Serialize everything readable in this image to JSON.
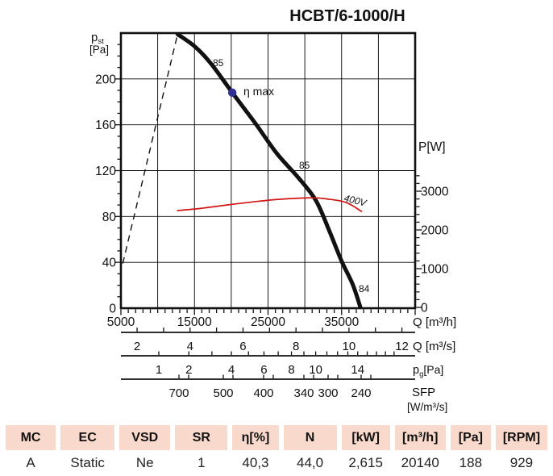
{
  "title": "HCBT/6-1000/H",
  "colors": {
    "red": "#d21414",
    "navy": "#2f3193",
    "peach": "#f8d9cb",
    "curve": "#111111"
  },
  "chart": {
    "y_left": {
      "name": "p",
      "sub": "st",
      "unit": "[Pa]",
      "tick_labels": [
        "0",
        "40",
        "80",
        "120",
        "160",
        "200"
      ],
      "tick_values": [
        0,
        40,
        80,
        120,
        160,
        200
      ]
    },
    "y_right": {
      "label": "P[W]",
      "tick_labels": [
        "0",
        "1000",
        "2000",
        "3000"
      ],
      "tick_values": [
        0,
        1000,
        2000,
        3000
      ]
    },
    "x_flow_h": {
      "unit": "Q [m³/h]",
      "tick_labels": [
        "5000",
        "15000",
        "25000",
        "35000"
      ],
      "tick_values": [
        5000,
        15000,
        25000,
        35000
      ]
    },
    "x_flow_s": {
      "unit": "Q [m³/s]",
      "tick_labels": [
        "2",
        "4",
        "6",
        "8",
        "10",
        "12"
      ],
      "tick_values": [
        2,
        4,
        6,
        8,
        10,
        12
      ]
    },
    "x_dyn_p": {
      "name": "p",
      "sub": "g",
      "unit": "[Pa]",
      "tick_labels": [
        "1",
        "2",
        "4",
        "6",
        "8",
        "10",
        "14"
      ],
      "tick_values": [
        1,
        2,
        4,
        6,
        8,
        10,
        14
      ]
    },
    "x_sfp": {
      "label": "SFP",
      "unit": "[W/m³/s]",
      "tick_labels": [
        "700",
        "500",
        "400",
        "340",
        "300",
        "240"
      ]
    },
    "curve_labels": [
      "85",
      "85",
      "84"
    ],
    "eta_max_label": "η max",
    "power_curve_label": "400V"
  },
  "chart_data": {
    "type": "line",
    "title": "HCBT/6-1000/H",
    "xlabel": "Q [m³/h]",
    "ylabel_left": "p_st [Pa]",
    "ylabel_right": "P [W]",
    "x_range": [
      5000,
      45000
    ],
    "y_left_range": [
      0,
      240
    ],
    "y_right_range": [
      0,
      3500
    ],
    "grid": true,
    "series": [
      {
        "name": "fan_curve_pst",
        "axis": "left",
        "style": "solid",
        "color": "#111111",
        "points": [
          [
            12700,
            239
          ],
          [
            15100,
            228
          ],
          [
            17300,
            213
          ],
          [
            20140,
            188
          ],
          [
            23300,
            161
          ],
          [
            26200,
            135
          ],
          [
            29100,
            114
          ],
          [
            31500,
            94
          ],
          [
            33300,
            68
          ],
          [
            35000,
            41
          ],
          [
            36500,
            21
          ],
          [
            37550,
            1
          ]
        ]
      },
      {
        "name": "power_400V",
        "axis": "right",
        "style": "solid",
        "color": "#d21414",
        "points": [
          [
            12700,
            2500
          ],
          [
            16000,
            2560
          ],
          [
            19500,
            2645
          ],
          [
            23000,
            2725
          ],
          [
            26400,
            2790
          ],
          [
            30800,
            2830
          ],
          [
            33000,
            2800
          ],
          [
            35600,
            2710
          ],
          [
            37700,
            2480
          ]
        ]
      },
      {
        "name": "operating_limit_line",
        "axis": "left",
        "style": "dashed",
        "color": "#111111",
        "points": [
          [
            5250,
            39
          ],
          [
            12700,
            239
          ]
        ]
      }
    ],
    "annotations": [
      {
        "label": "η max",
        "q_m3h": 20140,
        "p_st_pa": 188
      }
    ],
    "secondary_x_scales": {
      "q_m3s_labels": [
        2,
        4,
        6,
        8,
        10,
        12
      ],
      "pg_pa_labels": [
        1,
        2,
        4,
        6,
        8,
        10,
        14
      ],
      "sfp_w_m3s_labels": [
        700,
        500,
        400,
        340,
        300,
        240
      ]
    }
  },
  "table": {
    "headers": [
      "MC",
      "EC",
      "VSD",
      "SR",
      "η[%]",
      "N",
      "[kW]",
      "[m³/h]",
      "[Pa]",
      "[RPM]"
    ],
    "values": [
      "A",
      "Static",
      "Ne",
      "1",
      "40,3",
      "44,0",
      "2,615",
      "20140",
      "188",
      "929"
    ]
  }
}
